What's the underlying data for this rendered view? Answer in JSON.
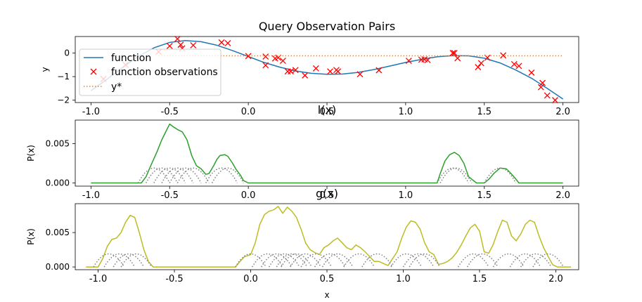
{
  "chart_data": [
    {
      "type": "line",
      "title": "Query Observation Pairs",
      "xlabel": "",
      "ylabel": "y",
      "xlim": [
        -1.1,
        2.1
      ],
      "ylim": [
        -2.1,
        0.7
      ],
      "xticks": [
        "-1.0",
        "-0.5",
        "0.0",
        "0.5",
        "1.0",
        "1.5",
        "2.0"
      ],
      "xtick_values": [
        -1.0,
        -0.5,
        0.0,
        0.5,
        1.0,
        1.5,
        2.0
      ],
      "yticks": [
        "0",
        "−1",
        "−2"
      ],
      "ytick_values": [
        0,
        -1,
        -2
      ],
      "legend_position": "upper-left",
      "series": [
        {
          "name": "function",
          "kind": "line",
          "color": "#1f77b4",
          "x": [
            -1.0,
            -0.9,
            -0.8,
            -0.7,
            -0.6,
            -0.5,
            -0.4,
            -0.3,
            -0.2,
            -0.1,
            0.0,
            0.1,
            0.2,
            0.3,
            0.4,
            0.5,
            0.6,
            0.7,
            0.8,
            0.9,
            1.0,
            1.1,
            1.2,
            1.3,
            1.4,
            1.5,
            1.6,
            1.7,
            1.8,
            1.9,
            2.0
          ],
          "y": [
            -1.6,
            -1.12,
            -0.62,
            -0.15,
            0.22,
            0.45,
            0.53,
            0.48,
            0.33,
            0.1,
            -0.15,
            -0.4,
            -0.6,
            -0.76,
            -0.86,
            -0.9,
            -0.89,
            -0.82,
            -0.7,
            -0.55,
            -0.4,
            -0.27,
            -0.16,
            -0.11,
            -0.12,
            -0.22,
            -0.42,
            -0.72,
            -1.07,
            -1.5,
            -1.95
          ]
        },
        {
          "name": "function observations",
          "kind": "scatter",
          "marker": "x",
          "color": "#ff0000",
          "x": [
            -0.92,
            -0.78,
            -0.57,
            -0.5,
            -0.45,
            -0.43,
            -0.42,
            -0.35,
            -0.17,
            -0.13,
            0.0,
            0.11,
            0.11,
            0.17,
            0.19,
            0.22,
            0.25,
            0.27,
            0.3,
            0.36,
            0.43,
            0.52,
            0.56,
            0.57,
            0.71,
            0.83,
            1.02,
            1.1,
            1.12,
            1.14,
            1.3,
            1.31,
            1.33,
            1.46,
            1.48,
            1.52,
            1.62,
            1.69,
            1.72,
            1.8,
            1.86,
            1.87,
            1.9,
            1.95
          ],
          "y": [
            -1.1,
            -0.5,
            0.05,
            0.3,
            0.6,
            0.35,
            0.2,
            0.33,
            0.45,
            0.42,
            -0.13,
            -0.15,
            -0.52,
            -0.23,
            -0.2,
            -0.33,
            -0.78,
            -0.78,
            -0.72,
            -0.95,
            -0.65,
            -0.78,
            -0.72,
            -0.78,
            -0.9,
            -0.73,
            -0.33,
            -0.28,
            -0.27,
            -0.3,
            0.0,
            0.0,
            -0.22,
            -0.6,
            -0.43,
            -0.2,
            -0.1,
            -0.47,
            -0.55,
            -0.83,
            -1.45,
            -1.27,
            -1.8,
            -2.0
          ]
        },
        {
          "name": "y*",
          "kind": "dotted",
          "color": "#ff7f0e",
          "x": [
            -0.57,
            2.0
          ],
          "y": [
            -0.12,
            -0.12
          ]
        }
      ]
    },
    {
      "type": "line",
      "title": "l(x)",
      "xlabel": "",
      "ylabel": "P(x)",
      "xlim": [
        -1.1,
        2.1
      ],
      "ylim": [
        -0.0004,
        0.008
      ],
      "xticks": [
        "-1.0",
        "-0.5",
        "0.0",
        "0.5",
        "1.0",
        "1.5",
        "2.0"
      ],
      "xtick_values": [
        -1.0,
        -0.5,
        0.0,
        0.5,
        1.0,
        1.5,
        2.0
      ],
      "yticks": [
        "0.000",
        "0.005"
      ],
      "ytick_values": [
        0.0,
        0.005
      ],
      "series": [
        {
          "kind": "line",
          "color": "#2ca02c",
          "x": [
            -1.0,
            -0.68,
            -0.65,
            -0.62,
            -0.58,
            -0.55,
            -0.52,
            -0.5,
            -0.48,
            -0.45,
            -0.42,
            -0.39,
            -0.36,
            -0.33,
            -0.3,
            -0.27,
            -0.25,
            -0.22,
            -0.2,
            -0.18,
            -0.15,
            -0.13,
            -0.1,
            -0.08,
            -0.05,
            -0.03,
            0.0,
            0.6,
            1.2,
            1.22,
            1.25,
            1.28,
            1.31,
            1.34,
            1.37,
            1.4,
            1.45,
            1.5,
            1.53,
            1.56,
            1.6,
            1.64,
            1.67,
            1.7,
            1.72,
            2.0
          ],
          "y": [
            0,
            0,
            0.0008,
            0.0022,
            0.004,
            0.0055,
            0.0067,
            0.0075,
            0.0072,
            0.0068,
            0.0065,
            0.0055,
            0.0035,
            0.0022,
            0.0018,
            0.0011,
            0.0012,
            0.0022,
            0.003,
            0.0035,
            0.0036,
            0.0034,
            0.0025,
            0.0018,
            0.001,
            0.0003,
            0,
            0,
            0,
            0.0012,
            0.0028,
            0.0036,
            0.0039,
            0.0035,
            0.0025,
            0.0008,
            0,
            0,
            0.0005,
            0.0012,
            0.0019,
            0.0018,
            0.0012,
            0.0005,
            0,
            0
          ]
        },
        {
          "kind": "dotted",
          "color": "#808080",
          "curves": [
            {
              "center": -0.6,
              "width": 0.1,
              "peak": 0.0019
            },
            {
              "center": -0.55,
              "width": 0.1,
              "peak": 0.0019
            },
            {
              "center": -0.5,
              "width": 0.1,
              "peak": 0.0019
            },
            {
              "center": -0.45,
              "width": 0.1,
              "peak": 0.0019
            },
            {
              "center": -0.4,
              "width": 0.1,
              "peak": 0.0019
            },
            {
              "center": -0.35,
              "width": 0.1,
              "peak": 0.0019
            },
            {
              "center": -0.17,
              "width": 0.1,
              "peak": 0.0019
            },
            {
              "center": -0.13,
              "width": 0.1,
              "peak": 0.0019
            },
            {
              "center": 1.3,
              "width": 0.1,
              "peak": 0.0019
            },
            {
              "center": 1.32,
              "width": 0.1,
              "peak": 0.0019
            },
            {
              "center": 1.6,
              "width": 0.1,
              "peak": 0.0019
            }
          ]
        }
      ]
    },
    {
      "type": "line",
      "title": "g(x)",
      "xlabel": "x",
      "ylabel": "P(x)",
      "xlim": [
        -1.15,
        2.15
      ],
      "ylim": [
        -0.0004,
        0.0092
      ],
      "xticks": [
        "-1.0",
        "-0.5",
        "0.0",
        "0.5",
        "1.0",
        "1.5",
        "2.0"
      ],
      "xtick_values": [
        -1.0,
        -0.5,
        0.0,
        0.5,
        1.0,
        1.5,
        2.0
      ],
      "yticks": [
        "0.000",
        "0.005"
      ],
      "ytick_values": [
        0.0,
        0.005
      ],
      "series": [
        {
          "kind": "line",
          "color": "#bcbd22",
          "x": [
            -1.08,
            -1.0,
            -0.97,
            -0.94,
            -0.91,
            -0.88,
            -0.85,
            -0.82,
            -0.79,
            -0.76,
            -0.73,
            -0.7,
            -0.67,
            -0.64,
            -0.6,
            -0.1,
            -0.07,
            -0.04,
            0.0,
            0.03,
            0.06,
            0.09,
            0.12,
            0.15,
            0.18,
            0.21,
            0.24,
            0.27,
            0.3,
            0.33,
            0.36,
            0.39,
            0.42,
            0.45,
            0.48,
            0.51,
            0.54,
            0.57,
            0.6,
            0.63,
            0.66,
            0.69,
            0.72,
            0.75,
            0.78,
            0.81,
            0.84,
            0.87,
            0.9,
            0.93,
            0.96,
            0.99,
            1.02,
            1.05,
            1.08,
            1.11,
            1.14,
            1.17,
            1.2,
            1.23,
            1.26,
            1.29,
            1.32,
            1.35,
            1.38,
            1.41,
            1.44,
            1.47,
            1.5,
            1.53,
            1.56,
            1.59,
            1.62,
            1.65,
            1.68,
            1.71,
            1.74,
            1.77,
            1.8,
            1.83,
            1.86,
            1.89,
            1.92,
            1.95,
            1.98,
            2.01,
            2.1
          ],
          "y": [
            0,
            0,
            0.0012,
            0.003,
            0.004,
            0.0042,
            0.005,
            0.0065,
            0.0075,
            0.0072,
            0.005,
            0.0025,
            0.0008,
            0,
            0,
            0,
            0.0008,
            0.0015,
            0.0018,
            0.0035,
            0.0062,
            0.0076,
            0.0081,
            0.0083,
            0.0088,
            0.0078,
            0.0087,
            0.0081,
            0.0072,
            0.0055,
            0.0035,
            0.0025,
            0.0021,
            0.0018,
            0.0028,
            0.0032,
            0.0038,
            0.0042,
            0.0035,
            0.0028,
            0.0025,
            0.0032,
            0.0028,
            0.0022,
            0.0015,
            0.0008,
            0.0008,
            0.0005,
            0.0002,
            0.0012,
            0.0022,
            0.0042,
            0.0058,
            0.0067,
            0.0065,
            0.0055,
            0.0035,
            0.0022,
            0.0018,
            0.0004,
            0.0005,
            0.0008,
            0.0013,
            0.0021,
            0.0032,
            0.0045,
            0.0057,
            0.0062,
            0.0052,
            0.0022,
            0.002,
            0.0033,
            0.0052,
            0.0068,
            0.0065,
            0.0045,
            0.0038,
            0.0048,
            0.0062,
            0.0068,
            0.0065,
            0.0045,
            0.0028,
            0.0015,
            0.0003,
            0,
            0
          ]
        },
        {
          "kind": "dotted",
          "color": "#808080",
          "curves": [
            {
              "center": -0.93,
              "width": 0.1,
              "peak": 0.0019
            },
            {
              "center": -0.86,
              "width": 0.1,
              "peak": 0.0019
            },
            {
              "center": -0.8,
              "width": 0.1,
              "peak": 0.0019
            },
            {
              "center": -0.75,
              "width": 0.1,
              "peak": 0.0019
            },
            {
              "center": 0.0,
              "width": 0.1,
              "peak": 0.0019
            },
            {
              "center": 0.11,
              "width": 0.1,
              "peak": 0.0019
            },
            {
              "center": 0.17,
              "width": 0.1,
              "peak": 0.0019
            },
            {
              "center": 0.22,
              "width": 0.1,
              "peak": 0.0019
            },
            {
              "center": 0.27,
              "width": 0.1,
              "peak": 0.0019
            },
            {
              "center": 0.3,
              "width": 0.1,
              "peak": 0.0019
            },
            {
              "center": 0.36,
              "width": 0.1,
              "peak": 0.0019
            },
            {
              "center": 0.43,
              "width": 0.1,
              "peak": 0.0019
            },
            {
              "center": 0.52,
              "width": 0.1,
              "peak": 0.0019
            },
            {
              "center": 0.57,
              "width": 0.1,
              "peak": 0.0019
            },
            {
              "center": 0.71,
              "width": 0.1,
              "peak": 0.0019
            },
            {
              "center": 0.83,
              "width": 0.1,
              "peak": 0.0019
            },
            {
              "center": 1.02,
              "width": 0.1,
              "peak": 0.0019
            },
            {
              "center": 1.1,
              "width": 0.1,
              "peak": 0.0019
            },
            {
              "center": 1.14,
              "width": 0.1,
              "peak": 0.0019
            },
            {
              "center": 1.46,
              "width": 0.1,
              "peak": 0.0019
            },
            {
              "center": 1.52,
              "width": 0.1,
              "peak": 0.0019
            },
            {
              "center": 1.69,
              "width": 0.1,
              "peak": 0.0019
            },
            {
              "center": 1.8,
              "width": 0.1,
              "peak": 0.0019
            },
            {
              "center": 1.87,
              "width": 0.1,
              "peak": 0.0019
            },
            {
              "center": 1.95,
              "width": 0.1,
              "peak": 0.0019
            }
          ]
        }
      ]
    }
  ]
}
